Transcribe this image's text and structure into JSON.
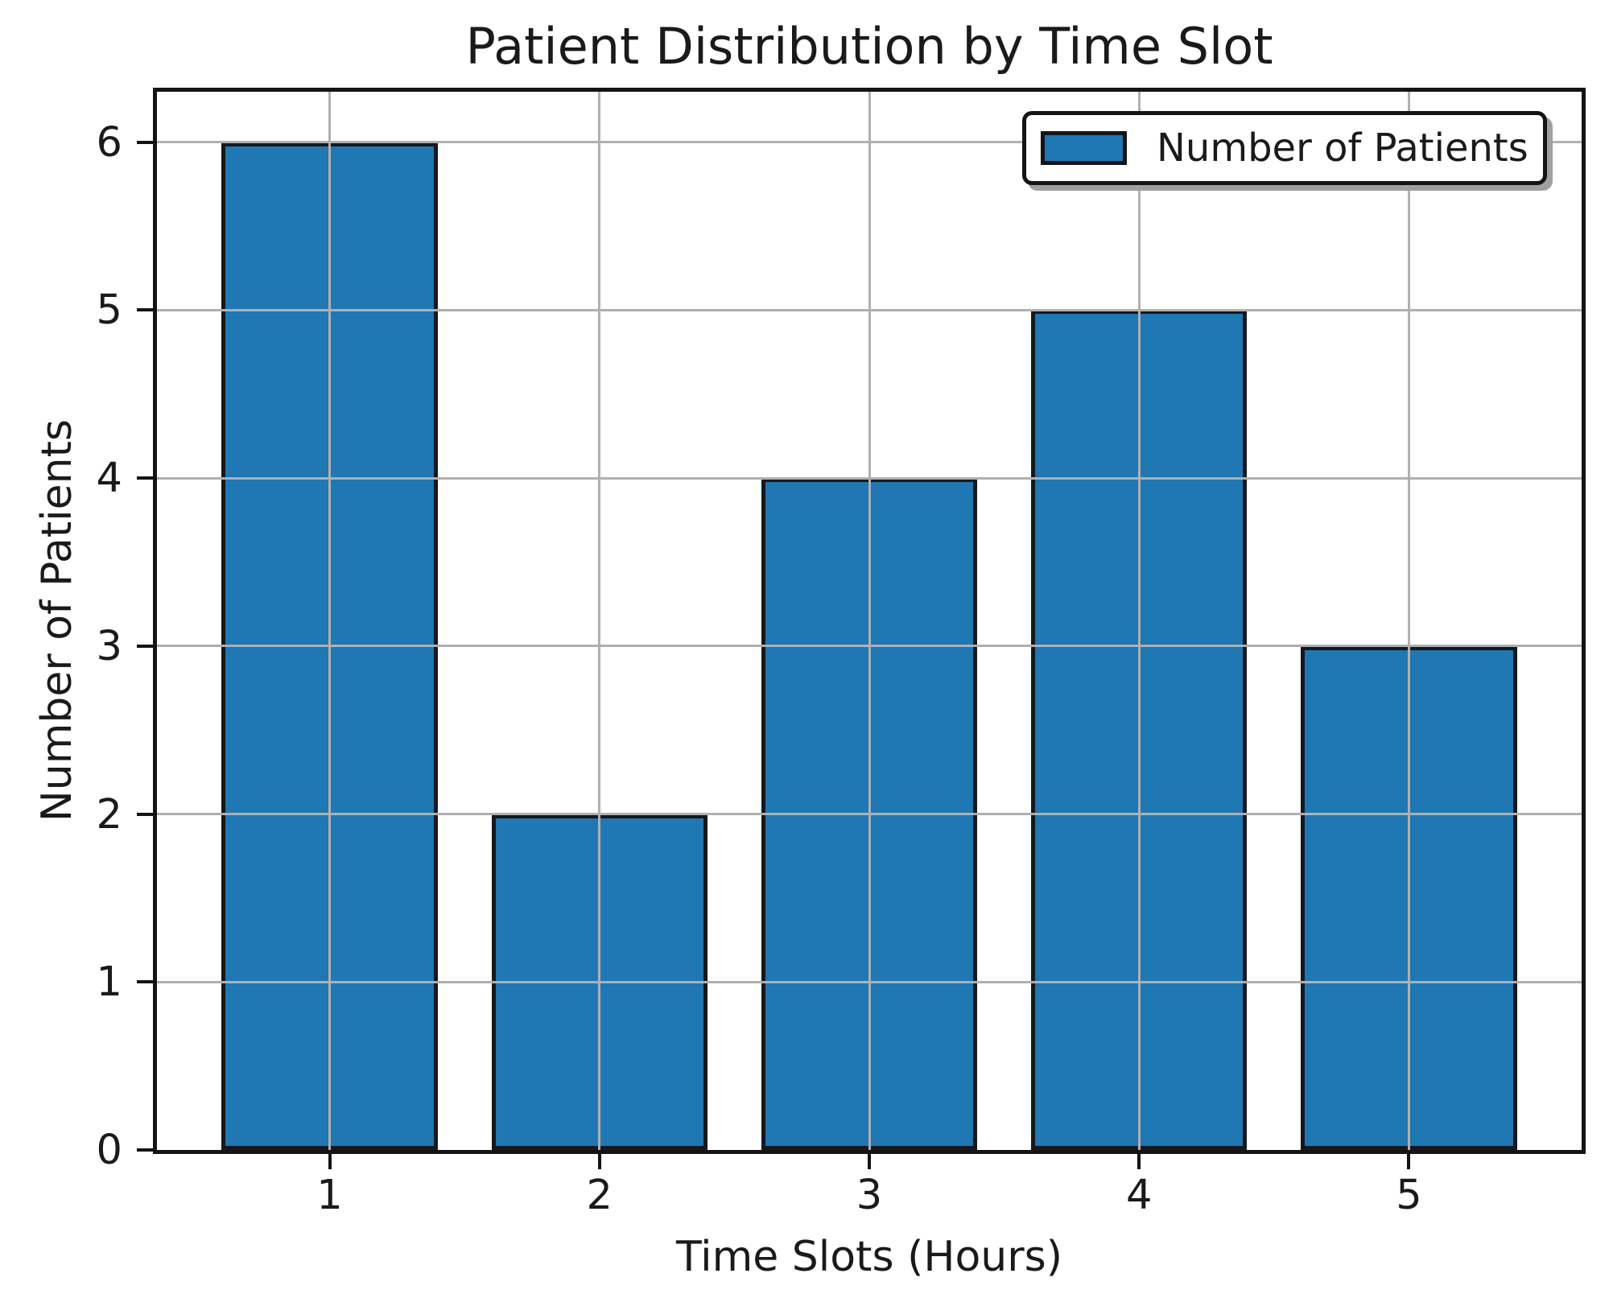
{
  "chart_data": {
    "type": "bar",
    "title": "Patient Distribution by Time Slot",
    "xlabel": "Time Slots (Hours)",
    "ylabel": "Number of Patients",
    "categories": [
      "1",
      "2",
      "3",
      "4",
      "5"
    ],
    "values": [
      6,
      2,
      4,
      5,
      3
    ],
    "series_name": "Number of Patients",
    "yticks": [
      0,
      1,
      2,
      3,
      4,
      5,
      6
    ],
    "ylim": [
      0,
      6.3
    ],
    "xlim": [
      0.36,
      5.64
    ],
    "bar_width": 0.8,
    "grid": true,
    "grid_above_bars": true,
    "legend": {
      "label": "Number of Patients",
      "position": "upper right",
      "fancybox": true,
      "shadow": true
    },
    "colors": {
      "bar_fill": "#1f77b4",
      "bar_edge": "#15181d",
      "grid": "#b0b0b0",
      "spine": "#141414",
      "text": "#1a1a1a",
      "background": "#ffffff",
      "legend_shadow": "#a0a0a0"
    }
  }
}
